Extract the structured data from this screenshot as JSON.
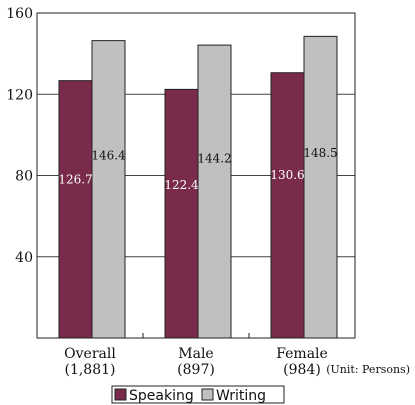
{
  "chart_data": {
    "type": "bar",
    "categories": [
      "Overall",
      "Male",
      "Female"
    ],
    "category_counts": [
      "(1,881)",
      "(897)",
      "(984)"
    ],
    "series": [
      {
        "name": "Speaking",
        "values": [
          126.7,
          122.4,
          130.6
        ],
        "color": "#7a2a4a"
      },
      {
        "name": "Writing",
        "values": [
          146.4,
          144.2,
          148.5
        ],
        "color": "#c0c0c0"
      }
    ],
    "ylim": [
      0,
      160
    ],
    "yticks": [
      40,
      80,
      120,
      160
    ],
    "grid": true,
    "unit_note": "(Unit: Persons)",
    "legend_position": "bottom"
  }
}
